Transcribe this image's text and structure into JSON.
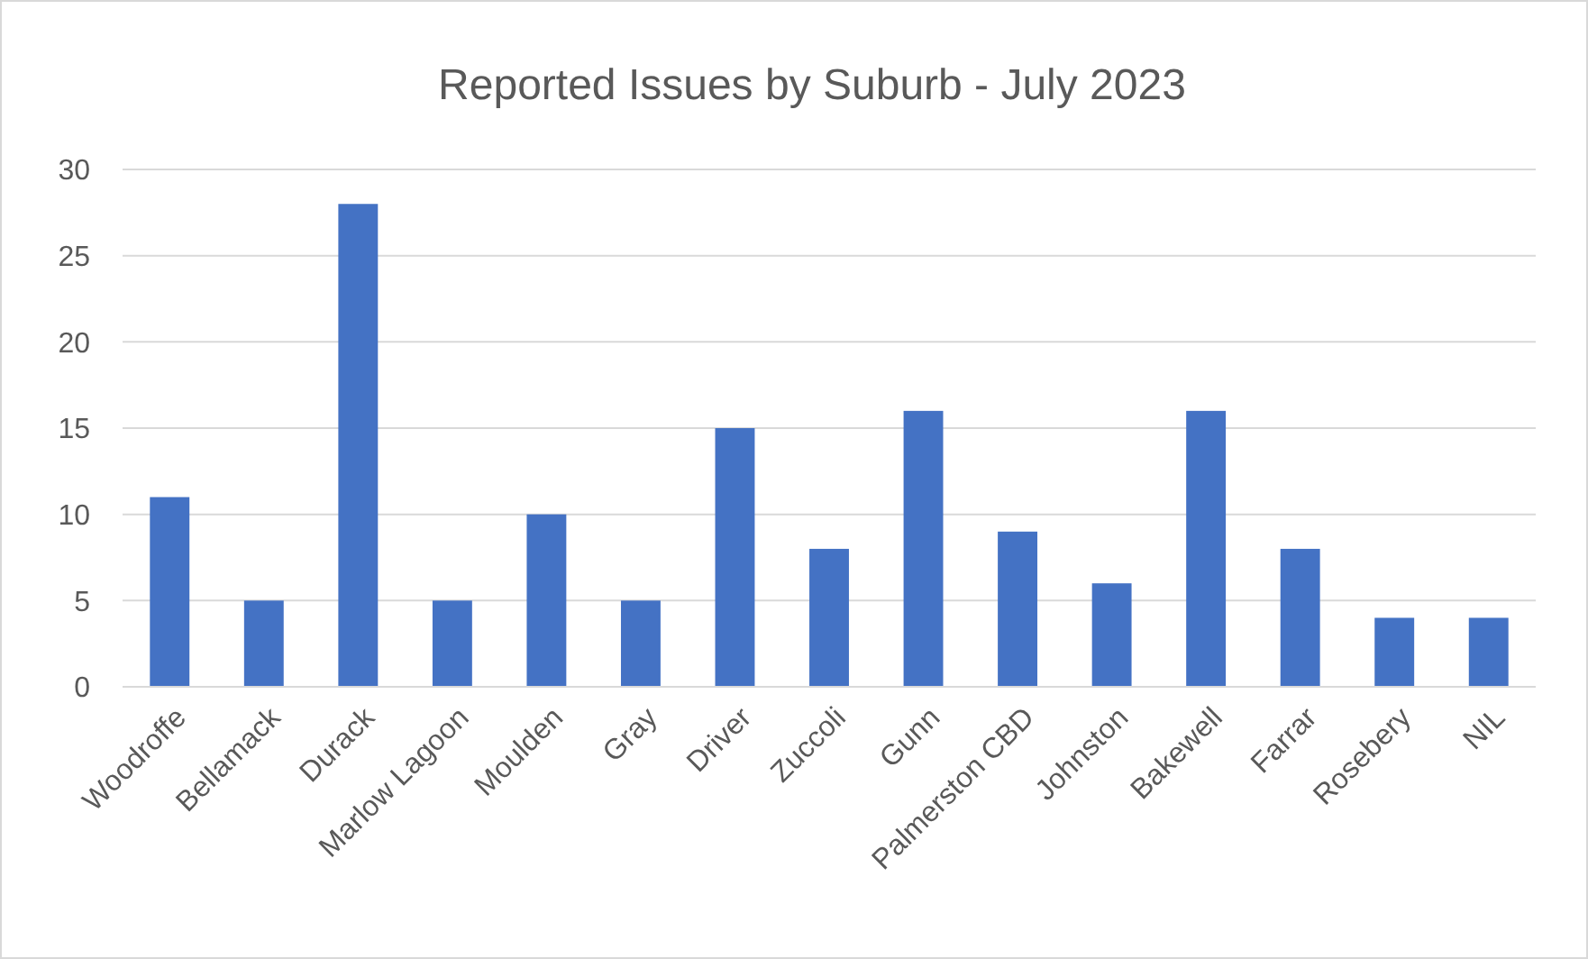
{
  "chart_data": {
    "type": "bar",
    "title": "Reported Issues by Suburb - July 2023",
    "categories": [
      "Woodroffe",
      "Bellamack",
      "Durack",
      "Marlow Lagoon",
      "Moulden",
      "Gray",
      "Driver",
      "Zuccoli",
      "Gunn",
      "Palmerston CBD",
      "Johnston",
      "Bakewell",
      "Farrar",
      "Rosebery",
      "NIL"
    ],
    "values": [
      11,
      5,
      28,
      5,
      10,
      5,
      15,
      8,
      16,
      9,
      6,
      16,
      8,
      4,
      4
    ],
    "color": "#4472c4",
    "ylim": [
      0,
      30
    ],
    "yticks": [
      0,
      5,
      10,
      15,
      20,
      25,
      30
    ],
    "grid": "y"
  }
}
